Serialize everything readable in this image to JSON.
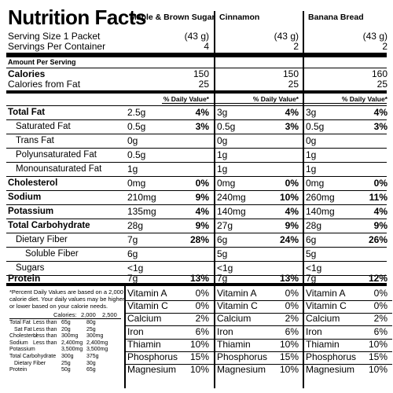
{
  "title": "Nutrition Facts",
  "serving_size_label": "Serving Size 1 Packet",
  "servings_per_container_label": "Servings Per Container",
  "amount_per_serving": "Amount Per Serving",
  "calories_label": "Calories",
  "calories_fat_label": "Calories from Fat",
  "dv_header": "% Daily Value*",
  "nutrients": [
    "Total Fat",
    "Saturated Fat",
    "Trans Fat",
    "Polyunsaturated Fat",
    "Monounsaturated Fat",
    "Cholesterol",
    "Sodium",
    "Potassium",
    "Total Carbohydrate",
    "Dietary Fiber",
    "Soluble Fiber",
    "Sugars",
    "Protein"
  ],
  "vitamins": [
    "Vitamin A",
    "Vitamin C",
    "Calcium",
    "Iron",
    "Thiamin",
    "Phosphorus",
    "Magnesium"
  ],
  "flavors": [
    {
      "name": "Maple & Brown Sugar",
      "serving_size": "(43 g)",
      "servings": "4",
      "calories": "150",
      "calories_fat": "25",
      "amounts": [
        "2.5g",
        "0.5g",
        "0g",
        "0.5g",
        "1g",
        "0mg",
        "210mg",
        "135mg",
        "28g",
        "7g",
        "6g",
        "<1g",
        "7g"
      ],
      "dv": [
        "4%",
        "3%",
        "",
        "",
        "",
        "0%",
        "9%",
        "4%",
        "9%",
        "28%",
        "",
        "",
        "13%"
      ],
      "vit": [
        "0%",
        "0%",
        "2%",
        "6%",
        "10%",
        "15%",
        "10%"
      ]
    },
    {
      "name": "Cinnamon",
      "serving_size": "(43 g)",
      "servings": "2",
      "calories": "150",
      "calories_fat": "25",
      "amounts": [
        "3g",
        "0.5g",
        "0g",
        "1g",
        "1g",
        "0mg",
        "240mg",
        "140mg",
        "27g",
        "6g",
        "5g",
        "<1g",
        "7g"
      ],
      "dv": [
        "4%",
        "3%",
        "",
        "",
        "",
        "0%",
        "10%",
        "4%",
        "9%",
        "24%",
        "",
        "",
        "13%"
      ],
      "vit": [
        "0%",
        "0%",
        "2%",
        "6%",
        "10%",
        "15%",
        "10%"
      ]
    },
    {
      "name": "Banana Bread",
      "serving_size": "(43 g)",
      "servings": "2",
      "calories": "160",
      "calories_fat": "25",
      "amounts": [
        "3g",
        "0.5g",
        "0g",
        "1g",
        "1g",
        "0mg",
        "260mg",
        "140mg",
        "28g",
        "6g",
        "5g",
        "<1g",
        "7g"
      ],
      "dv": [
        "4%",
        "3%",
        "",
        "",
        "",
        "0%",
        "11%",
        "4%",
        "9%",
        "26%",
        "",
        "",
        "12%"
      ],
      "vit": [
        "0%",
        "0%",
        "2%",
        "6%",
        "10%",
        "15%",
        "10%"
      ]
    }
  ],
  "footnote": [
    "*Percent Daily Values are based on a 2,000",
    "calorie diet. Your daily values may be higher",
    "or lower based on your calorie needs."
  ],
  "dv_table": {
    "header": [
      "Calories:",
      "2,000",
      "2,500"
    ],
    "rows": [
      [
        "Total Fat",
        "Less than",
        "65g",
        "80g"
      ],
      [
        "Sat Fat",
        "Less than",
        "20g",
        "25g"
      ],
      [
        "Cholesterol",
        "Less than",
        "300mg",
        "300mg"
      ],
      [
        "Sodium",
        "Less than",
        "2,400mg",
        "2,400mg"
      ],
      [
        "Potassium",
        "",
        "3,500mg",
        "3,500mg"
      ],
      [
        "Total Carbohydrate",
        "",
        "300g",
        "375g"
      ],
      [
        "Dietary Fiber",
        "",
        "25g",
        "30g"
      ],
      [
        "Protein",
        "",
        "50g",
        "65g"
      ]
    ]
  }
}
